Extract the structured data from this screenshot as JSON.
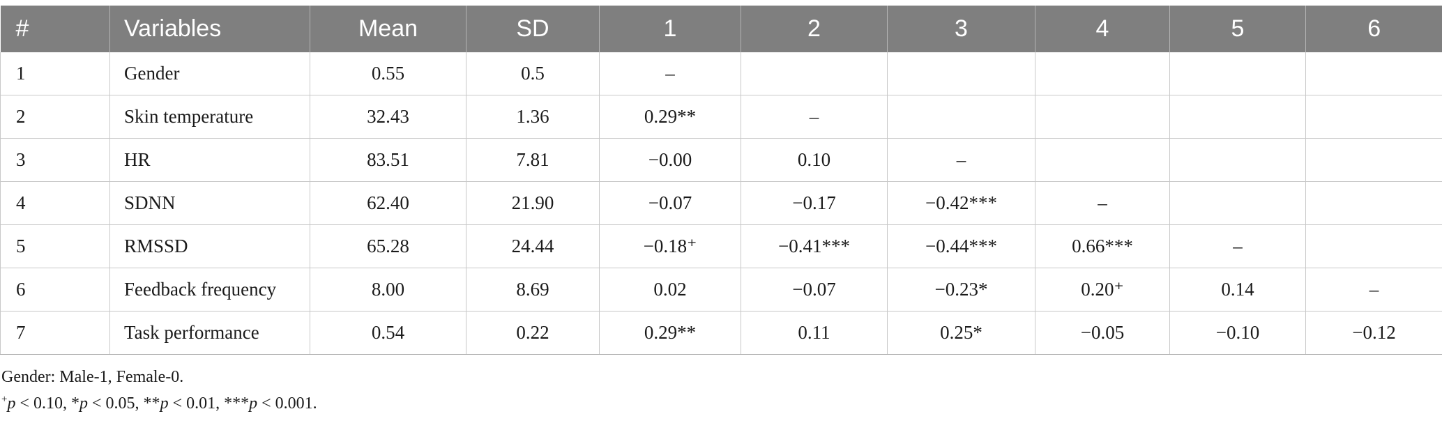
{
  "table": {
    "headers": [
      "#",
      "Variables",
      "Mean",
      "SD",
      "1",
      "2",
      "3",
      "4",
      "5",
      "6"
    ],
    "rows": [
      [
        "1",
        "Gender",
        "0.55",
        "0.5",
        "–",
        "",
        "",
        "",
        "",
        ""
      ],
      [
        "2",
        "Skin temperature",
        "32.43",
        "1.36",
        "0.29**",
        "–",
        "",
        "",
        "",
        ""
      ],
      [
        "3",
        "HR",
        "83.51",
        "7.81",
        "−0.00",
        "0.10",
        "–",
        "",
        "",
        ""
      ],
      [
        "4",
        "SDNN",
        "62.40",
        "21.90",
        "−0.07",
        "−0.17",
        "−0.42***",
        "–",
        "",
        ""
      ],
      [
        "5",
        "RMSSD",
        "65.28",
        "24.44",
        "−0.18⁺",
        "−0.41***",
        "−0.44***",
        "0.66***",
        "–",
        ""
      ],
      [
        "6",
        "Feedback frequency",
        "8.00",
        "8.69",
        "0.02",
        "−0.07",
        "−0.23*",
        "0.20⁺",
        "0.14",
        "–"
      ],
      [
        "7",
        "Task performance",
        "0.54",
        "0.22",
        "0.29**",
        "0.11",
        "0.25*",
        "−0.05",
        "−0.10",
        "−0.12"
      ]
    ]
  },
  "notes": {
    "gender": "Gender: Male-1, Female-0.",
    "sig_plus_sym": "+",
    "p": "p",
    "sig_1": " < 0.10, *",
    "sig_2": " < 0.05, **",
    "sig_3": " < 0.01, ***",
    "sig_4": " < 0.001."
  }
}
